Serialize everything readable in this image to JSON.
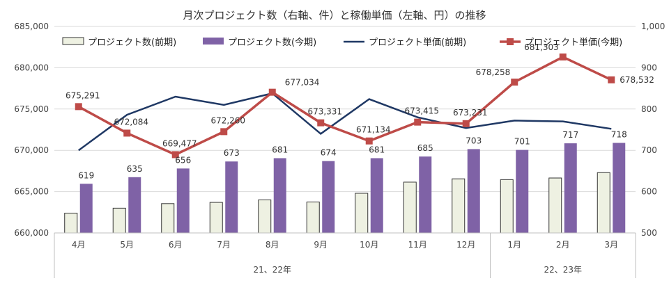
{
  "chart_data": {
    "type": "bar+line",
    "title": "月次プロジェクト数（右軸、件）と稼働単価（左軸、円）の推移",
    "categories": [
      "4月",
      "5月",
      "6月",
      "7月",
      "8月",
      "9月",
      "10月",
      "11月",
      "12月",
      "1月",
      "2月",
      "3月"
    ],
    "year_groups": [
      {
        "label": "21、22年",
        "count": 9
      },
      {
        "label": "22、23年",
        "count": 3
      }
    ],
    "left_axis": {
      "min": 660000,
      "max": 685000,
      "step": 5000,
      "ticks": [
        "660,000",
        "665,000",
        "670,000",
        "675,000",
        "680,000",
        "685,000"
      ]
    },
    "right_axis": {
      "min": 500,
      "max": 1000,
      "step": 100,
      "ticks": [
        "500",
        "600",
        "700",
        "800",
        "900",
        "1,000"
      ]
    },
    "series": [
      {
        "name": "プロジェクト数(前期)",
        "kind": "bar",
        "axis": "right",
        "color": "#eef1e2",
        "stroke": "#333333",
        "values": [
          548,
          560,
          571,
          574,
          580,
          575,
          596,
          623,
          631,
          629,
          633,
          646
        ]
      },
      {
        "name": "プロジェクト数(今期)",
        "kind": "bar",
        "axis": "right",
        "color": "#7f62a6",
        "values": [
          619,
          635,
          656,
          673,
          681,
          674,
          681,
          685,
          703,
          701,
          717,
          718
        ],
        "labels": [
          "619",
          "635",
          "656",
          "673",
          "681",
          "674",
          "681",
          "685",
          "703",
          "701",
          "717",
          "718"
        ]
      },
      {
        "name": "プロジェクト単価(前期)",
        "kind": "line",
        "axis": "left",
        "color": "#1f3864",
        "values": [
          670000,
          674300,
          676500,
          675500,
          676900,
          672000,
          676200,
          674000,
          672700,
          673600,
          673500,
          672600
        ]
      },
      {
        "name": "プロジェクト単価(今期)",
        "kind": "line",
        "axis": "left",
        "color": "#be4b48",
        "marker": "square",
        "values": [
          675291,
          672084,
          669477,
          672260,
          677034,
          673331,
          671134,
          673415,
          673231,
          678258,
          681303,
          678532
        ],
        "labels": [
          "675,291",
          "672,084",
          "669,477",
          "672,260",
          "677,034",
          "673,331",
          "671,134",
          "673,415",
          "673,231",
          "678,258",
          "681,303",
          "678,532"
        ]
      }
    ]
  }
}
